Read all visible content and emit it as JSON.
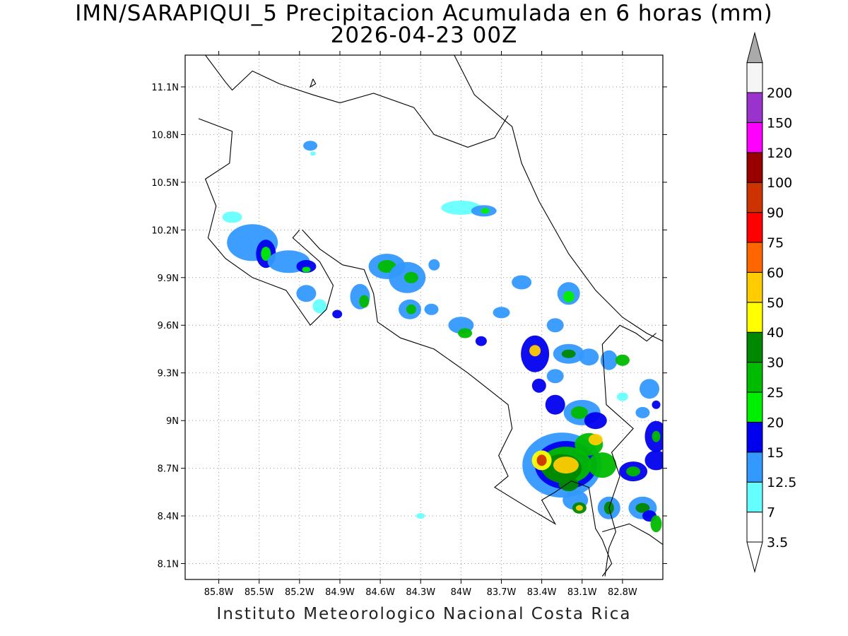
{
  "title": {
    "line1": "IMN/SARAPIQUI_5 Precipitacion Acumulada en 6 horas (mm)",
    "line2": "2026-04-23 00Z"
  },
  "footer": "Instituto Meteorologico Nacional Costa Rica",
  "map": {
    "lon_range": [
      -86.05,
      -82.5
    ],
    "lat_range": [
      8.0,
      11.3
    ],
    "x_ticks": [
      "85.8W",
      "85.5W",
      "85.2W",
      "84.9W",
      "84.6W",
      "84.3W",
      "84W",
      "83.7W",
      "83.4W",
      "83.1W",
      "82.8W"
    ],
    "y_ticks": [
      "11.1N",
      "10.8N",
      "10.5N",
      "10.2N",
      "9.9N",
      "9.6N",
      "9.3N",
      "9N",
      "8.7N",
      "8.4N",
      "8.1N"
    ],
    "grid": true
  },
  "legend": {
    "levels": [
      "3.5",
      "7",
      "12.5",
      "15",
      "20",
      "25",
      "30",
      "40",
      "50",
      "60",
      "75",
      "90",
      "100",
      "120",
      "150",
      "200"
    ],
    "colors": [
      "#ffffff",
      "#66ffff",
      "#3399ff",
      "#0000ee",
      "#00ee00",
      "#00bb00",
      "#008800",
      "#ffff00",
      "#ffcc00",
      "#ff6600",
      "#ff0000",
      "#cc3300",
      "#990000",
      "#ff00ff",
      "#9933cc",
      "#f5f5f5",
      "#aaaaaa"
    ]
  }
}
